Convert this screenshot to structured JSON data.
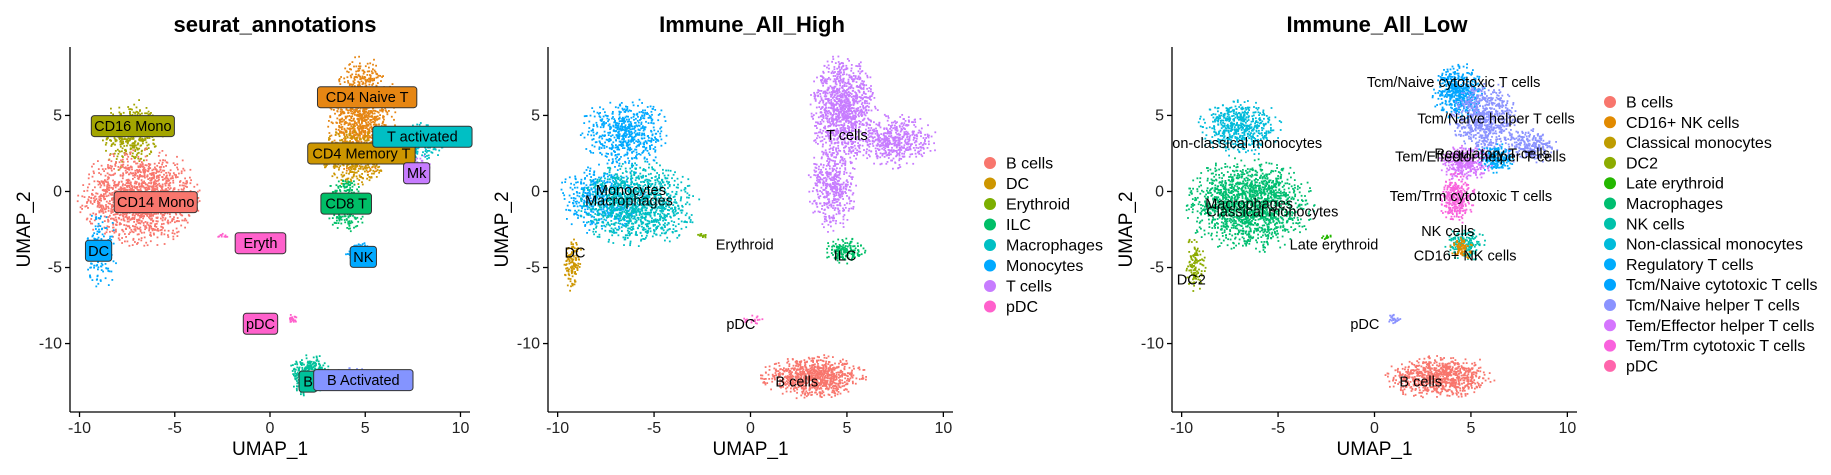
{
  "chart_data": [
    {
      "type": "scatter",
      "title": "seurat_annotations",
      "xlabel": "UMAP_1",
      "ylabel": "UMAP_2",
      "xlim": [
        -10.5,
        10.5
      ],
      "ylim": [
        -14.5,
        9.5
      ],
      "xticks": [
        -10,
        -5,
        0,
        5,
        10
      ],
      "yticks": [
        -10,
        -5,
        0,
        5
      ],
      "legend": "none",
      "label_style": "boxed",
      "clusters": [
        {
          "name": "CD16 Mono",
          "color": "#A3A500",
          "label": "CD16 Mono",
          "label_x": -7.2,
          "label_y": 4.3,
          "blobs": [
            {
              "cx": -7.3,
              "cy": 3.8,
              "rx": 1.4,
              "ry": 1.9,
              "n": 420
            }
          ]
        },
        {
          "name": "CD14 Mono",
          "color": "#F8766D",
          "label": "CD14 Mono",
          "label_x": -6.0,
          "label_y": -0.7,
          "blobs": [
            {
              "cx": -6.8,
              "cy": -0.4,
              "rx": 2.7,
              "ry": 2.7,
              "n": 1500
            }
          ]
        },
        {
          "name": "DC",
          "color": "#00A9FF",
          "label": "DC",
          "label_x": -9.0,
          "label_y": -3.9,
          "blobs": [
            {
              "cx": -8.9,
              "cy": -3.8,
              "rx": 0.7,
              "ry": 2.4,
              "n": 150
            }
          ]
        },
        {
          "name": "CD4 Naive T",
          "color": "#E68613",
          "label": "CD4 Naive T",
          "label_x": 5.1,
          "label_y": 6.2,
          "blobs": [
            {
              "cx": 4.8,
              "cy": 4.9,
              "rx": 1.5,
              "ry": 3.3,
              "n": 1100
            }
          ]
        },
        {
          "name": "CD4 Memory T",
          "color": "#CD9600",
          "label": "CD4 Memory T",
          "label_x": 4.8,
          "label_y": 2.5,
          "blobs": [
            {
              "cx": 4.4,
              "cy": 2.3,
              "rx": 1.4,
              "ry": 1.6,
              "n": 500
            }
          ]
        },
        {
          "name": "T activated",
          "color": "#00BFC4",
          "label": "T activated",
          "label_x": 8.0,
          "label_y": 3.6,
          "blobs": [
            {
              "cx": 7.7,
              "cy": 3.2,
              "rx": 1.3,
              "ry": 1.1,
              "n": 280
            }
          ]
        },
        {
          "name": "Mk",
          "color": "#C77CFF",
          "label": "Mk",
          "label_x": 7.7,
          "label_y": 1.2,
          "blobs": [
            {
              "cx": 7.9,
              "cy": 1.5,
              "rx": 0.5,
              "ry": 0.8,
              "n": 50
            }
          ]
        },
        {
          "name": "CD8 T",
          "color": "#00BE67",
          "label": "CD8 T",
          "label_x": 4.0,
          "label_y": -0.8,
          "blobs": [
            {
              "cx": 4.0,
              "cy": -0.8,
              "rx": 0.9,
              "ry": 1.6,
              "n": 320
            }
          ]
        },
        {
          "name": "NK",
          "color": "#00A9FF",
          "label": "NK",
          "label_x": 4.9,
          "label_y": -4.3,
          "blobs": [
            {
              "cx": 4.7,
              "cy": -4.0,
              "rx": 0.6,
              "ry": 0.6,
              "n": 120
            }
          ]
        },
        {
          "name": "Eryth",
          "color": "#FF61CC",
          "label": "Eryth",
          "label_x": -0.5,
          "label_y": -3.4,
          "blobs": [
            {
              "cx": -2.5,
              "cy": -2.9,
              "rx": 0.3,
              "ry": 0.15,
              "n": 12
            }
          ]
        },
        {
          "name": "pDC",
          "color": "#FF61CC",
          "label": "pDC",
          "label_x": -0.5,
          "label_y": -8.7,
          "blobs": [
            {
              "cx": 1.2,
              "cy": -8.4,
              "rx": 0.2,
              "ry": 0.3,
              "n": 20
            }
          ]
        },
        {
          "name": "B",
          "color": "#00C19A",
          "label": "B",
          "label_x": 2.0,
          "label_y": -12.5,
          "blobs": [
            {
              "cx": 2.1,
              "cy": -12.1,
              "rx": 0.9,
              "ry": 1.2,
              "n": 380
            }
          ]
        },
        {
          "name": "B Activated",
          "color": "#8494FF",
          "label": "B Activated",
          "label_x": 4.9,
          "label_y": -12.4,
          "blobs": [
            {
              "cx": 4.2,
              "cy": -12.3,
              "rx": 1.3,
              "ry": 0.6,
              "n": 420
            }
          ]
        }
      ]
    },
    {
      "type": "scatter",
      "title": "Immune_All_High",
      "xlabel": "UMAP_1",
      "ylabel": "UMAP_2",
      "xlim": [
        -10.5,
        10.5
      ],
      "ylim": [
        -14.5,
        9.5
      ],
      "xticks": [
        -10,
        -5,
        0,
        5,
        10
      ],
      "yticks": [
        -10,
        -5,
        0,
        5
      ],
      "legend": "right",
      "label_style": "plain",
      "legend_entries": [
        "B cells",
        "DC",
        "Erythroid",
        "ILC",
        "Macrophages",
        "Monocytes",
        "T cells",
        "pDC"
      ],
      "legend_colors": [
        "#F8766D",
        "#CD9600",
        "#7CAE00",
        "#00BE67",
        "#00BFC4",
        "#00A9FF",
        "#C77CFF",
        "#FF61CC"
      ],
      "clusters": [
        {
          "name": "Monocytes",
          "color": "#00A9FF",
          "label": "Monocytes",
          "label_x": -6.2,
          "label_y": 0.1,
          "blobs": [
            {
              "cx": -6.5,
              "cy": 3.8,
              "rx": 2.0,
              "ry": 2.0,
              "n": 600
            },
            {
              "cx": -7.6,
              "cy": -0.5,
              "rx": 2.0,
              "ry": 2.0,
              "n": 500
            }
          ]
        },
        {
          "name": "Macrophages",
          "color": "#00BFC4",
          "label": "Macrophages",
          "label_x": -6.3,
          "label_y": -0.6,
          "blobs": [
            {
              "cx": -5.8,
              "cy": -0.8,
              "rx": 2.6,
              "ry": 2.4,
              "n": 1200
            }
          ]
        },
        {
          "name": "DC",
          "color": "#CD9600",
          "label": "DC",
          "label_x": -9.1,
          "label_y": -4.0,
          "blobs": [
            {
              "cx": -9.2,
              "cy": -4.8,
              "rx": 0.4,
              "ry": 1.5,
              "n": 120
            }
          ]
        },
        {
          "name": "Erythroid",
          "color": "#7CAE00",
          "label": "Erythroid",
          "label_x": -0.3,
          "label_y": -3.5,
          "blobs": [
            {
              "cx": -2.5,
              "cy": -2.9,
              "rx": 0.3,
              "ry": 0.15,
              "n": 12
            }
          ]
        },
        {
          "name": "T cells",
          "color": "#C77CFF",
          "label": "T cells",
          "label_x": 5.0,
          "label_y": 3.7,
          "blobs": [
            {
              "cx": 4.8,
              "cy": 5.4,
              "rx": 1.5,
              "ry": 3.0,
              "n": 1100
            },
            {
              "cx": 7.5,
              "cy": 3.3,
              "rx": 1.8,
              "ry": 1.5,
              "n": 500
            },
            {
              "cx": 4.3,
              "cy": 0.3,
              "rx": 1.1,
              "ry": 2.5,
              "n": 450
            }
          ]
        },
        {
          "name": "ILC",
          "color": "#00BE67",
          "label": "ILC",
          "label_x": 4.9,
          "label_y": -4.2,
          "blobs": [
            {
              "cx": 4.9,
              "cy": -3.9,
              "rx": 0.9,
              "ry": 0.7,
              "n": 160
            }
          ]
        },
        {
          "name": "pDC",
          "color": "#FF61CC",
          "label": "pDC",
          "label_x": -0.5,
          "label_y": -8.7,
          "blobs": [
            {
              "cx": 0.2,
              "cy": -8.5,
              "rx": 0.5,
              "ry": 0.3,
              "n": 20
            }
          ]
        },
        {
          "name": "B cells",
          "color": "#F8766D",
          "label": "B cells",
          "label_x": 2.4,
          "label_y": -12.5,
          "blobs": [
            {
              "cx": 3.3,
              "cy": -12.2,
              "rx": 2.3,
              "ry": 1.2,
              "n": 850
            }
          ]
        }
      ]
    },
    {
      "type": "scatter",
      "title": "Immune_All_Low",
      "xlabel": "UMAP_1",
      "ylabel": "UMAP_2",
      "xlim": [
        -10.5,
        10.5
      ],
      "ylim": [
        -14.5,
        9.5
      ],
      "xticks": [
        -10,
        -5,
        0,
        5,
        10
      ],
      "yticks": [
        -10,
        -5,
        0,
        5
      ],
      "legend": "right",
      "label_style": "plain",
      "legend_entries": [
        "B cells",
        "CD16+ NK cells",
        "Classical monocytes",
        "DC2",
        "Late erythroid",
        "Macrophages",
        "NK cells",
        "Non-classical monocytes",
        "Regulatory T cells",
        "Tcm/Naive cytotoxic T cells",
        "Tcm/Naive helper T cells",
        "Tem/Effector helper T cells",
        "Tem/Trm cytotoxic T cells",
        "pDC"
      ],
      "legend_colors": [
        "#F8766D",
        "#E18A00",
        "#BE9C00",
        "#8CAB00",
        "#24B700",
        "#00BE70",
        "#00C1AB",
        "#00BBDA",
        "#00ACFC",
        "#00A5FF",
        "#8B93FF",
        "#D575FE",
        "#F962DD",
        "#FF65AC"
      ],
      "clusters": [
        {
          "name": "Non-classical monocytes",
          "color": "#00BBDA",
          "label": "on-classical monocytes",
          "label_x": -6.6,
          "label_y": 3.2,
          "blobs": [
            {
              "cx": -7.0,
              "cy": 4.2,
              "rx": 1.8,
              "ry": 1.6,
              "n": 550
            }
          ]
        },
        {
          "name": "Classical monocytes",
          "color": "#00BE70",
          "label": "Classical monocytes",
          "label_x": -5.3,
          "label_y": -1.3,
          "blobs": [
            {
              "cx": -6.5,
              "cy": -0.9,
              "rx": 2.8,
              "ry": 2.6,
              "n": 1700
            }
          ]
        },
        {
          "name": "Macrophages",
          "color": "#00BE70",
          "label": "Macrophages",
          "label_x": -6.5,
          "label_y": -0.8,
          "blobs": []
        },
        {
          "name": "DC2",
          "color": "#8CAB00",
          "label": "DC2",
          "label_x": -9.5,
          "label_y": -5.8,
          "blobs": [
            {
              "cx": -9.3,
              "cy": -4.8,
              "rx": 0.5,
              "ry": 1.6,
              "n": 120
            }
          ]
        },
        {
          "name": "Late erythroid",
          "color": "#24B700",
          "label": "Late erythroid",
          "label_x": -2.1,
          "label_y": -3.5,
          "blobs": [
            {
              "cx": -2.5,
              "cy": -3.0,
              "rx": 0.3,
              "ry": 0.15,
              "n": 12
            }
          ]
        },
        {
          "name": "Tcm/Naive cytotoxic T cells",
          "color": "#00A5FF",
          "label": "Tcm/Naive cytotoxic T cells",
          "label_x": 4.1,
          "label_y": 7.2,
          "blobs": [
            {
              "cx": 4.4,
              "cy": 6.5,
              "rx": 1.2,
              "ry": 1.6,
              "n": 500
            }
          ]
        },
        {
          "name": "Tcm/Naive helper T cells",
          "color": "#8B93FF",
          "label": "Tcm/Naive helper T cells",
          "label_x": 6.3,
          "label_y": 4.8,
          "blobs": [
            {
              "cx": 5.7,
              "cy": 4.8,
              "rx": 1.5,
              "ry": 2.0,
              "n": 700
            },
            {
              "cx": 8.0,
              "cy": 3.0,
              "rx": 1.3,
              "ry": 1.0,
              "n": 250
            }
          ]
        },
        {
          "name": "Regulatory T cells",
          "color": "#00ACFC",
          "label": "Regulatory T cells",
          "label_x": 6.1,
          "label_y": 2.5,
          "blobs": [
            {
              "cx": 6.3,
              "cy": 2.2,
              "rx": 0.9,
              "ry": 0.8,
              "n": 200
            }
          ]
        },
        {
          "name": "Tem/Effector helper T cells",
          "color": "#D575FE",
          "label": "Tem/Effector helper T cells",
          "label_x": 5.5,
          "label_y": 2.3,
          "blobs": [
            {
              "cx": 4.7,
              "cy": 1.9,
              "rx": 1.2,
              "ry": 1.0,
              "n": 350
            }
          ]
        },
        {
          "name": "Tem/Trm cytotoxic T cells",
          "color": "#F962DD",
          "label": "Tem/Trm cytotoxic T cells",
          "label_x": 5.0,
          "label_y": -0.3,
          "blobs": [
            {
              "cx": 4.3,
              "cy": -0.4,
              "rx": 0.8,
              "ry": 1.4,
              "n": 300
            }
          ]
        },
        {
          "name": "NK cells",
          "color": "#00C1AB",
          "label": "NK cells",
          "label_x": 3.8,
          "label_y": -2.6,
          "blobs": [
            {
              "cx": 4.7,
              "cy": -3.5,
              "rx": 0.9,
              "ry": 0.9,
              "n": 180
            }
          ]
        },
        {
          "name": "CD16+ NK cells",
          "color": "#E18A00",
          "label": "CD16+ NK cells",
          "label_x": 4.7,
          "label_y": -4.2,
          "blobs": [
            {
              "cx": 4.5,
              "cy": -3.8,
              "rx": 0.5,
              "ry": 0.6,
              "n": 80
            }
          ]
        },
        {
          "name": "pDC",
          "color": "#8B93FF",
          "label": "pDC",
          "label_x": -0.5,
          "label_y": -8.7,
          "blobs": [
            {
              "cx": 1.0,
              "cy": -8.4,
              "rx": 0.3,
              "ry": 0.3,
              "n": 25
            }
          ]
        },
        {
          "name": "B cells",
          "color": "#F8766D",
          "label": "B cells",
          "label_x": 2.4,
          "label_y": -12.5,
          "blobs": [
            {
              "cx": 3.3,
              "cy": -12.2,
              "rx": 2.3,
              "ry": 1.2,
              "n": 850
            }
          ]
        }
      ]
    }
  ]
}
